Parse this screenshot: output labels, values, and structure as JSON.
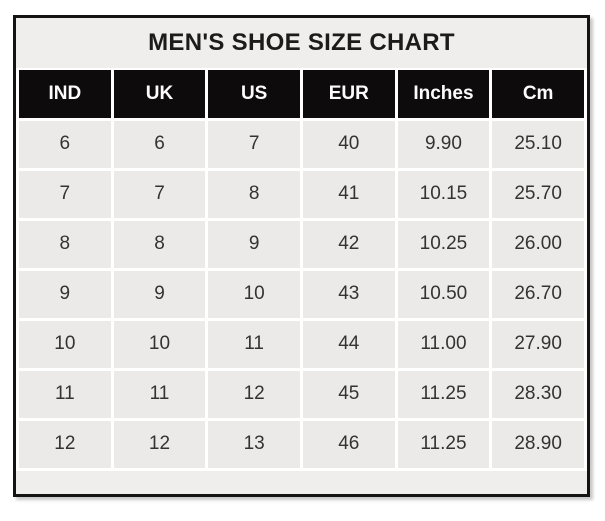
{
  "title": "MEN'S SHOE SIZE CHART",
  "colors": {
    "page_bg": "#ffffff",
    "frame_border": "#151313",
    "title_bg": "#efeeed",
    "title_text": "#1b1b1b",
    "header_bg": "#0d0b0b",
    "header_text": "#fcfcfc",
    "cell_bg": "#eceae9",
    "cell_text": "#333333",
    "gridline": "#ffffff"
  },
  "chart_data": {
    "type": "table",
    "title": "MEN'S SHOE SIZE CHART",
    "columns": [
      "IND",
      "UK",
      "US",
      "EUR",
      "Inches",
      "Cm"
    ],
    "rows": [
      [
        "6",
        "6",
        "7",
        "40",
        "9.90",
        "25.10"
      ],
      [
        "7",
        "7",
        "8",
        "41",
        "10.15",
        "25.70"
      ],
      [
        "8",
        "8",
        "9",
        "42",
        "10.25",
        "26.00"
      ],
      [
        "9",
        "9",
        "10",
        "43",
        "10.50",
        "26.70"
      ],
      [
        "10",
        "10",
        "11",
        "44",
        "11.00",
        "27.90"
      ],
      [
        "11",
        "11",
        "12",
        "45",
        "11.25",
        "28.30"
      ],
      [
        "12",
        "12",
        "13",
        "46",
        "11.25",
        "28.90"
      ]
    ],
    "layout": {
      "legend": "none",
      "grid": "white 3px separators",
      "header_style": "black background, white bold text",
      "title_position": "top center"
    }
  }
}
